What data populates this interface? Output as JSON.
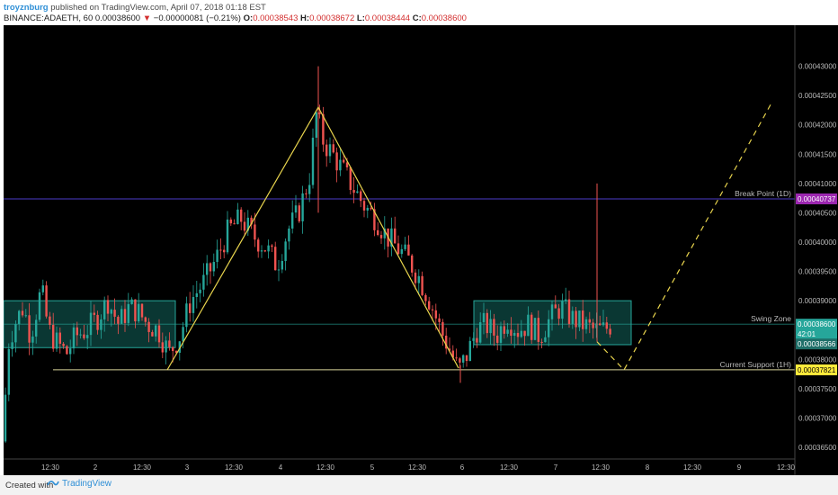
{
  "header": {
    "author": "troyznburg",
    "published_text": "published on TradingView.com, April 07, 2018 01:18 EST",
    "symbol": "BINANCE:ADAETH, 60",
    "last_price": "0.00038600",
    "change_arrow": "▼",
    "change": "−0.00000081 (−0.21%)",
    "o_label": "O:",
    "o_value": "0.00038543",
    "h_label": "H:",
    "h_value": "0.00038672",
    "l_label": "L:",
    "l_value": "0.00038444",
    "c_label": "C:",
    "c_value": "0.00038600"
  },
  "footer": {
    "created_with": "Created with",
    "brand": "TradingView",
    "brand_icon": "tradingview-logo-icon"
  },
  "colors": {
    "background": "#000000",
    "up": "#26a69a",
    "down": "#ef5350",
    "zone_fill": "#0e4a44",
    "zone_border": "#26a69a",
    "pattern_line": "#e8d44d",
    "break_line": "#4b3cc9",
    "break_tag": "#9c27b0",
    "support_tag": "#ffeb3b",
    "current_tag": "#26a69a"
  },
  "chart_data": {
    "type": "candlestick",
    "x_ticks": [
      "12:30",
      "2",
      "12:30",
      "3",
      "12:30",
      "4",
      "12:30",
      "5",
      "12:30",
      "6",
      "12:30",
      "7",
      "12:30",
      "8",
      "12:30",
      "9",
      "12:30"
    ],
    "y_ticks": [
      "0.00043000",
      "0.00042500",
      "0.00042000",
      "0.00041500",
      "0.00041000",
      "0.00040500",
      "0.00040000",
      "0.00039500",
      "0.00039000",
      "0.00038000",
      "0.00037500",
      "0.00037000",
      "0.00036500"
    ],
    "y_range": [
      0.000363,
      0.000437
    ],
    "price_path": [
      [
        0,
        0.000366
      ],
      [
        4,
        0.000382
      ],
      [
        12,
        0.000386
      ],
      [
        22,
        0.000389
      ],
      [
        30,
        0.000384
      ],
      [
        42,
        0.000392
      ],
      [
        50,
        0.000385
      ],
      [
        58,
        0.000383
      ],
      [
        70,
        0.000381
      ],
      [
        80,
        0.000384
      ],
      [
        92,
        0.000385
      ],
      [
        104,
        0.000387
      ],
      [
        116,
        0.00039
      ],
      [
        128,
        0.000386
      ],
      [
        140,
        0.000389
      ],
      [
        150,
        0.000388
      ],
      [
        160,
        0.000386
      ],
      [
        172,
        0.000385
      ],
      [
        184,
        0.000381
      ],
      [
        196,
        0.000384
      ],
      [
        208,
        0.00039
      ],
      [
        222,
        0.000393
      ],
      [
        236,
        0.000397
      ],
      [
        250,
        0.000402
      ],
      [
        264,
        0.000404
      ],
      [
        278,
        0.000401
      ],
      [
        292,
        0.000399
      ],
      [
        304,
        0.000396
      ],
      [
        316,
        0.000402
      ],
      [
        328,
        0.000405
      ],
      [
        340,
        0.000411
      ],
      [
        348,
        0.000422
      ],
      [
        356,
        0.000417
      ],
      [
        366,
        0.000415
      ],
      [
        378,
        0.000412
      ],
      [
        390,
        0.000409
      ],
      [
        402,
        0.000406
      ],
      [
        414,
        0.000404
      ],
      [
        426,
        0.000401
      ],
      [
        438,
        0.000399
      ],
      [
        450,
        0.000397
      ],
      [
        462,
        0.000394
      ],
      [
        474,
        0.00039
      ],
      [
        486,
        0.000385
      ],
      [
        498,
        0.000381
      ],
      [
        506,
        0.000378
      ],
      [
        516,
        0.000381
      ],
      [
        526,
        0.000385
      ],
      [
        536,
        0.000386
      ],
      [
        548,
        0.000384
      ],
      [
        560,
        0.000387
      ],
      [
        572,
        0.000385
      ],
      [
        584,
        0.000386
      ],
      [
        596,
        0.000384
      ],
      [
        608,
        0.000387
      ],
      [
        620,
        0.000389
      ],
      [
        632,
        0.000387
      ],
      [
        644,
        0.000386
      ],
      [
        656,
        0.000385
      ],
      [
        668,
        0.000385
      ],
      [
        676,
        0.000386
      ]
    ],
    "spikes": [
      [
        350,
        0.00043,
        0.000405
      ],
      [
        660,
        0.00041,
        0.000383
      ],
      [
        508,
        0.000379,
        0.000376
      ]
    ],
    "support_level": {
      "label": "Current Support (1H)",
      "value": "0.00037821",
      "price": 0.00037821
    },
    "break_level": {
      "label": "Break Point (1D)",
      "value": "0.00040737",
      "price": 0.00040737
    },
    "swing_zone": {
      "label": "Swing Zone",
      "value": "0.00038600",
      "price": 0.000386
    },
    "current_price_tag": "0.00038566",
    "countdown_tag": "42:01",
    "zones": [
      {
        "name": "left-zone",
        "x0": 0,
        "x1": 191,
        "top": 0.00039,
        "bottom": 0.000382
      },
      {
        "name": "right-zone",
        "x0": 523,
        "x1": 698,
        "top": 0.00039,
        "bottom": 0.0003825
      }
    ],
    "pattern_solid": [
      [
        182,
        0.0003782
      ],
      [
        350,
        0.000423
      ],
      [
        506,
        0.0003785
      ]
    ],
    "pattern_dashed": [
      [
        660,
        0.000383
      ],
      [
        690,
        0.0003782
      ],
      [
        855,
        0.000424
      ]
    ]
  }
}
